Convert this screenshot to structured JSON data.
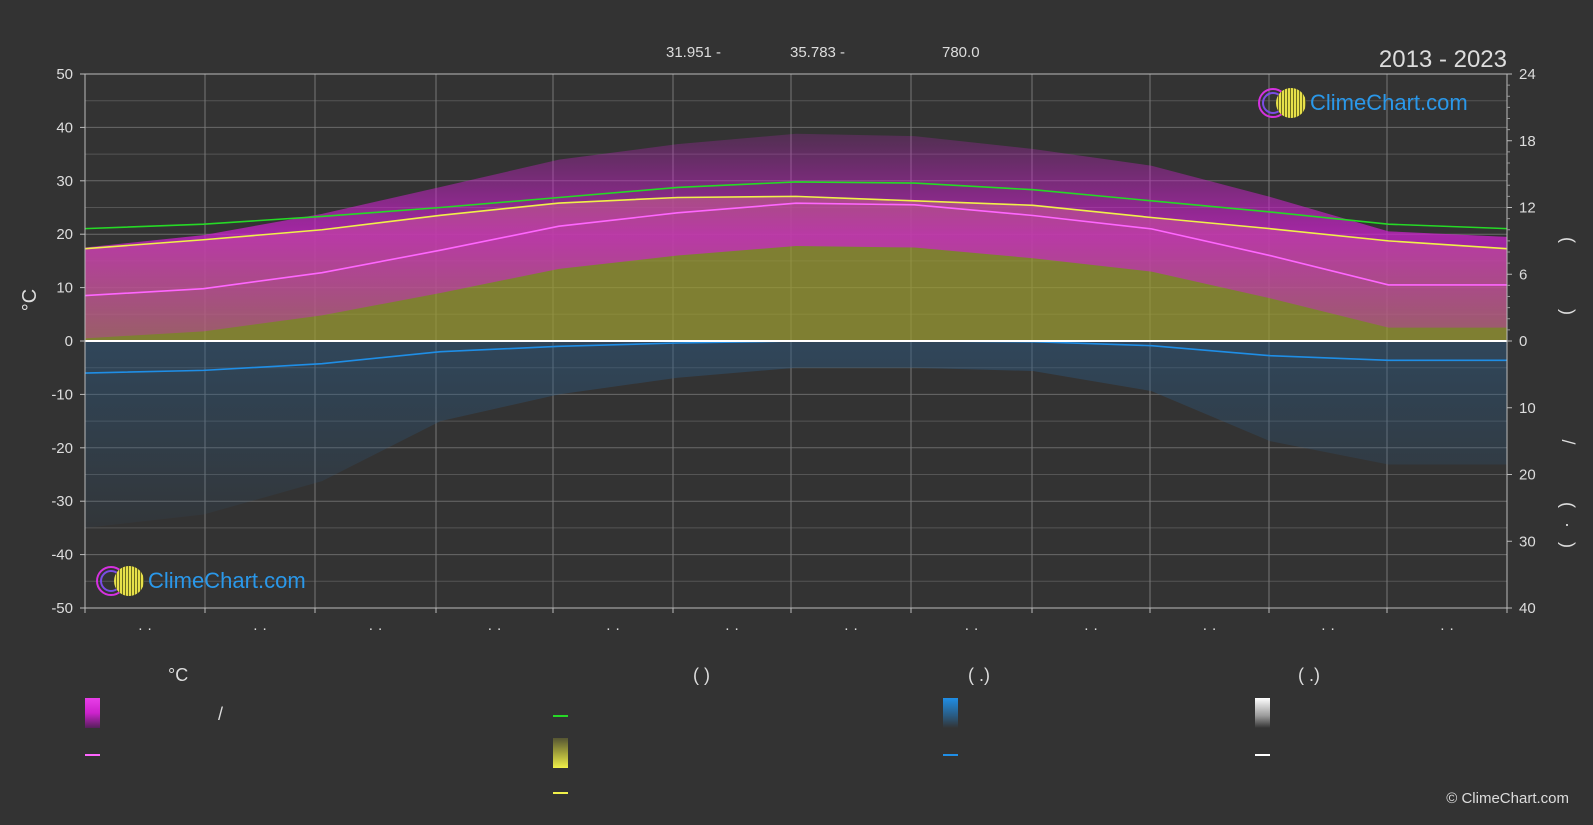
{
  "header": {
    "years": "2013 - 2023",
    "top_values": [
      "31.951 -",
      "35.783 -",
      "780.0"
    ]
  },
  "branding": {
    "logo_text": "ClimeChart.com",
    "copyright": "© ClimeChart.com"
  },
  "legend": {
    "col1_head": "°C",
    "col2_head": "(           )",
    "col3_head": "(    .)",
    "col4_head": "(    .)",
    "slash": "/"
  },
  "right_axis_glyphs": [
    "(",
    ")",
    "/",
    "(",
    "·",
    ")"
  ],
  "colors": {
    "background": "#333333",
    "daylight": "#26d926",
    "sunshine": "#f0f04a",
    "temperature": "#ff66ff",
    "temperature_range": "#cc22cc",
    "sun_band": "#999933",
    "precipitation": "#1f8ee6",
    "snow": "#ffffff",
    "brand": "#2a98ea"
  },
  "chart_data": {
    "type": "line",
    "left_axis": {
      "label": "°C",
      "ylim": [
        -50,
        50
      ],
      "ticks": [
        50,
        40,
        30,
        20,
        10,
        0,
        -10,
        -20,
        -30,
        -40,
        -50
      ]
    },
    "right_axis_upper": {
      "ticks": [
        24,
        18,
        12,
        6,
        0
      ],
      "range": [
        0,
        24
      ]
    },
    "right_axis_lower": {
      "ticks": [
        10,
        20,
        30,
        40
      ],
      "range": [
        0,
        40
      ]
    },
    "x_tick_labels": [
      "· ·",
      "· ·",
      "· ·",
      "· ·",
      "· ·",
      "· ·",
      "· ·",
      "· ·",
      "· ·",
      "· ·",
      "· ·",
      "· ·"
    ],
    "grid": true,
    "series": [
      {
        "key": "daylight",
        "axis": "right_upper",
        "values": [
          10.1,
          10.5,
          11.2,
          12.0,
          12.9,
          13.8,
          14.3,
          14.2,
          13.6,
          12.6,
          11.6,
          10.5,
          10.1
        ]
      },
      {
        "key": "sunshine",
        "axis": "right_upper",
        "values": [
          8.3,
          9.1,
          10.0,
          11.3,
          12.4,
          12.9,
          13.0,
          12.6,
          12.2,
          11.1,
          10.1,
          9.0,
          8.3
        ]
      },
      {
        "key": "temperature",
        "axis": "left",
        "values": [
          8.5,
          9.8,
          12.8,
          17.0,
          21.5,
          24.0,
          25.8,
          25.5,
          23.5,
          21.0,
          16.0,
          10.5,
          10.5
        ]
      },
      {
        "key": "precipitation",
        "axis": "right_lower",
        "values": [
          4.8,
          4.4,
          3.4,
          1.6,
          0.8,
          0.3,
          0.0,
          0.0,
          0.1,
          0.7,
          2.2,
          2.9,
          2.9
        ]
      }
    ]
  }
}
